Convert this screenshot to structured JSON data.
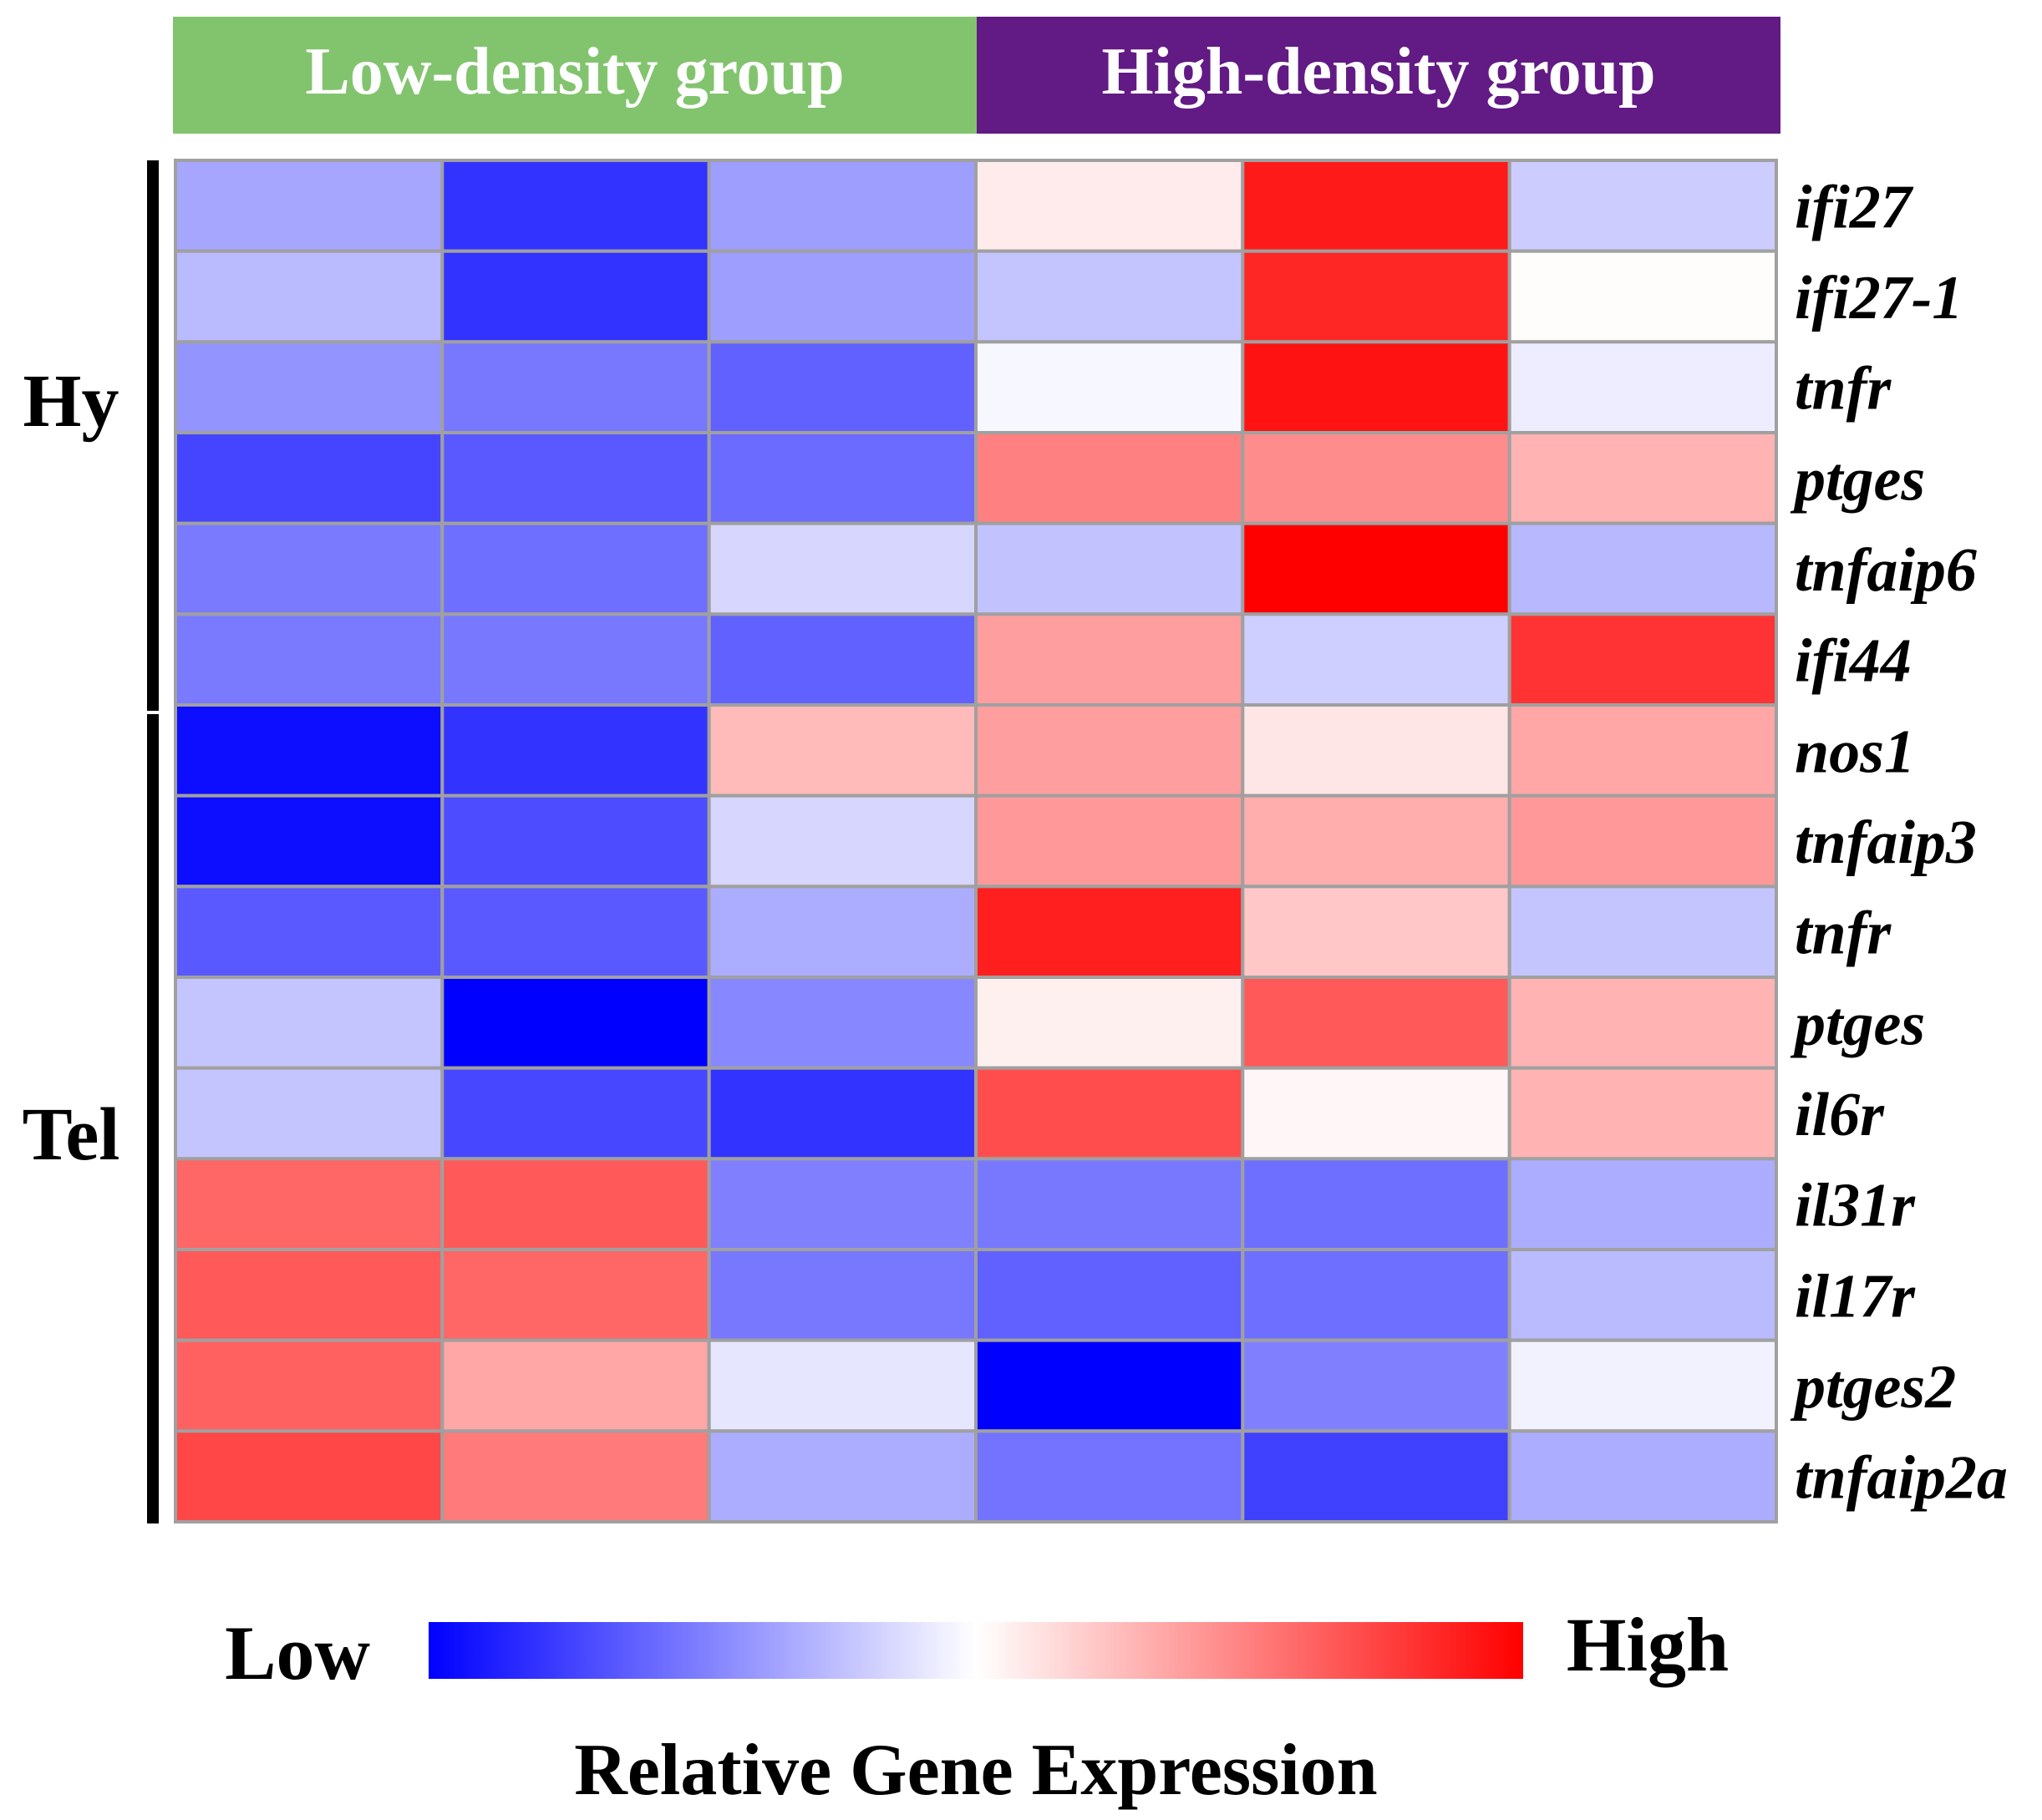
{
  "chart_data": {
    "type": "heatmap",
    "title": "",
    "groups": [
      {
        "label": "Low-density group",
        "color": "#82C46E",
        "columns": [
          0,
          1,
          2
        ]
      },
      {
        "label": "High-density group",
        "color": "#621A84",
        "columns": [
          3,
          4,
          5
        ]
      }
    ],
    "tissues": [
      {
        "label": "Hy",
        "rows": [
          0,
          5
        ]
      },
      {
        "label": "Tel",
        "rows": [
          6,
          14
        ]
      }
    ],
    "genes": [
      "ifi27",
      "ifi27-1",
      "tnfr",
      "ptges",
      "tnfaip6",
      "ifi44",
      "nos1",
      "tnfaip3",
      "tnfr",
      "ptges",
      "il6r",
      "il31r",
      "il17r",
      "ptges2",
      "tnfaip2a"
    ],
    "value_range": [
      -1,
      1
    ],
    "values": [
      [
        -0.35,
        -0.8,
        -0.38,
        0.08,
        0.9,
        -0.2
      ],
      [
        -0.27,
        -0.8,
        -0.38,
        -0.23,
        0.85,
        0.01
      ],
      [
        -0.42,
        -0.53,
        -0.62,
        -0.03,
        0.93,
        -0.07
      ],
      [
        -0.73,
        -0.65,
        -0.58,
        0.5,
        0.45,
        0.3
      ],
      [
        -0.52,
        -0.57,
        -0.16,
        -0.24,
        1.0,
        -0.28
      ],
      [
        -0.52,
        -0.53,
        -0.62,
        0.38,
        -0.19,
        0.8
      ],
      [
        -0.95,
        -0.8,
        0.27,
        0.38,
        0.1,
        0.35
      ],
      [
        -0.95,
        -0.7,
        -0.16,
        0.4,
        0.32,
        0.4
      ],
      [
        -0.65,
        -0.65,
        -0.32,
        0.88,
        0.22,
        -0.23
      ],
      [
        -0.23,
        -1.0,
        -0.47,
        0.06,
        0.65,
        0.3
      ],
      [
        -0.23,
        -0.72,
        -0.8,
        0.7,
        0.03,
        0.3
      ],
      [
        0.6,
        0.65,
        -0.5,
        -0.53,
        -0.57,
        -0.32
      ],
      [
        0.65,
        0.6,
        -0.53,
        -0.62,
        -0.57,
        -0.27
      ],
      [
        0.62,
        0.35,
        -0.1,
        -1.0,
        -0.5,
        -0.05
      ],
      [
        0.72,
        0.52,
        -0.32,
        -0.55,
        -0.75,
        -0.32
      ]
    ],
    "colorbar": {
      "low_label": "Low",
      "high_label": "High",
      "title": "Relative Gene Expression",
      "low_color": "#0000FF",
      "mid_color": "#FFFFFF",
      "high_color": "#FF0000"
    }
  }
}
